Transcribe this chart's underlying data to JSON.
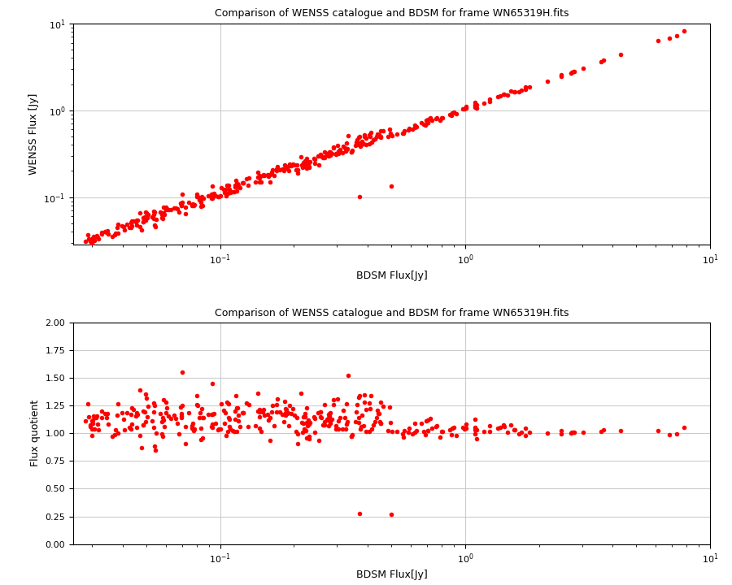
{
  "title": "Comparison of WENSS catalogue and BDSM for frame WN65319H.fits",
  "xlabel_top": "BDSM Flux[Jy]",
  "xlabel_bottom": "BDSM Flux[Jy]",
  "ylabel_top": "WENSS Flux [Jy]",
  "ylabel_bottom": "Flux quotient",
  "marker_color": "red",
  "marker_size": 4,
  "background_color": "white",
  "grid_color": "#cccccc"
}
